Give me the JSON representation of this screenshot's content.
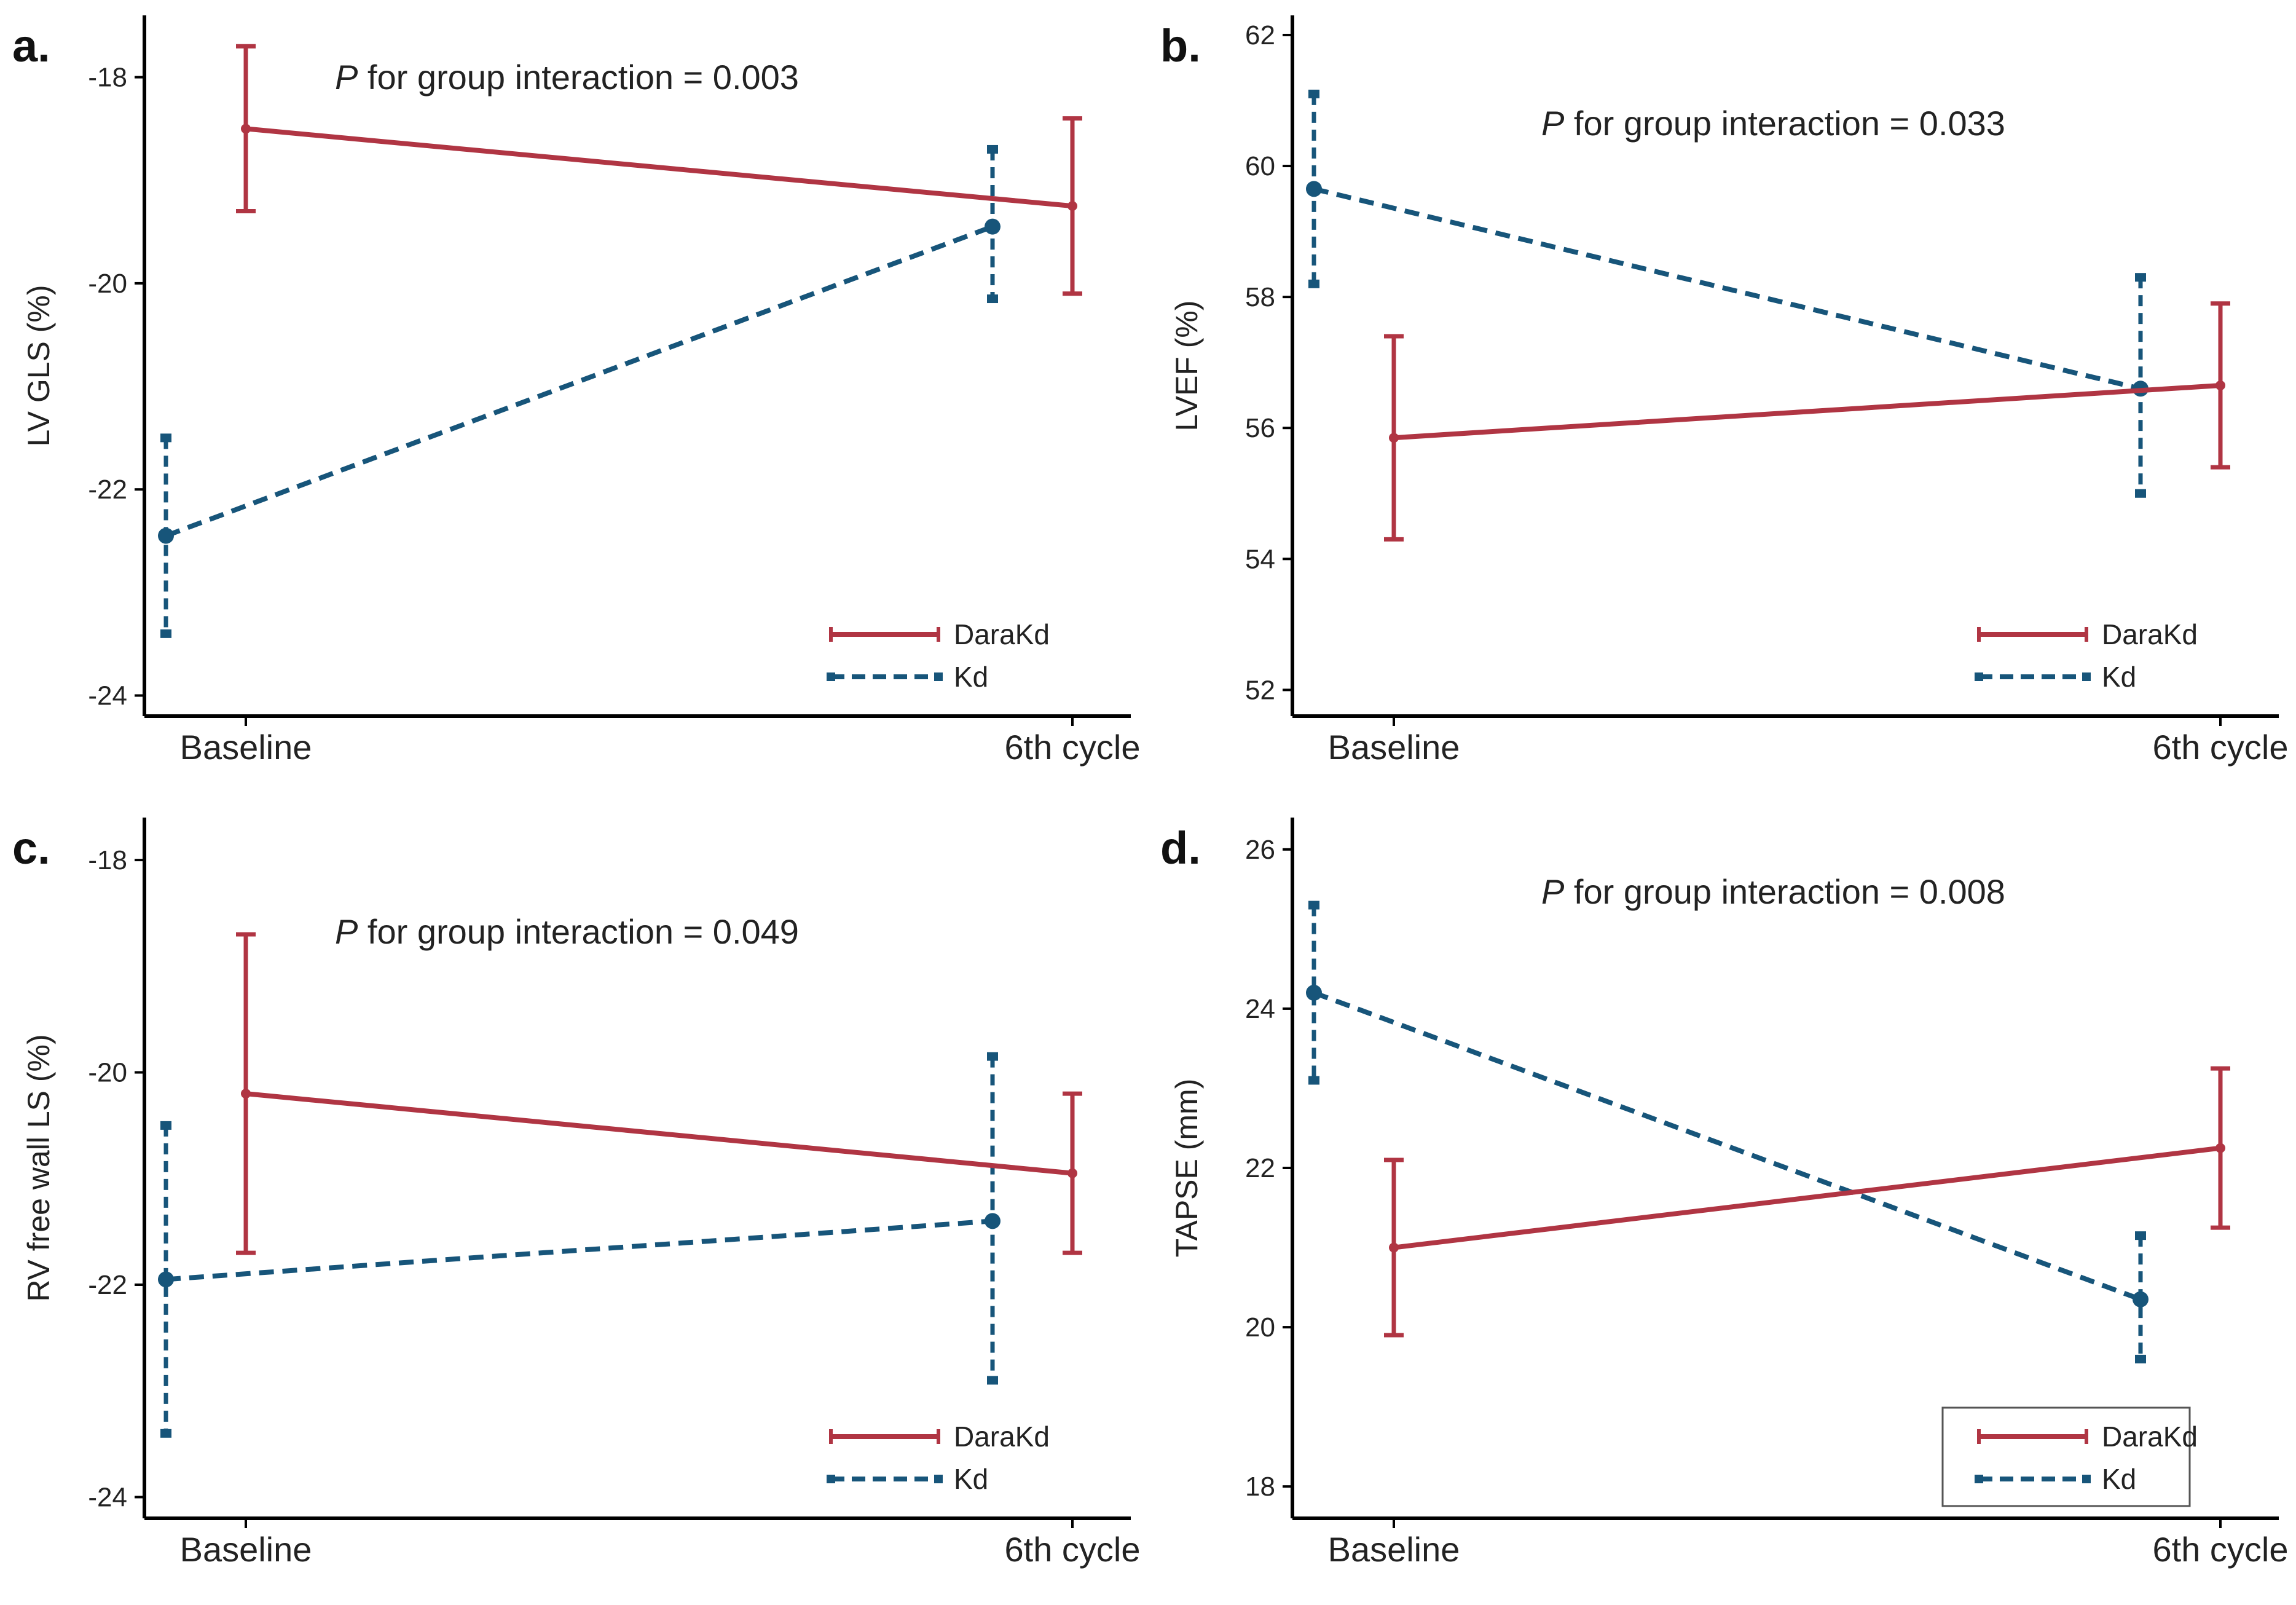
{
  "colors": {
    "DaraKd": "#b03543",
    "Kd": "#17557a"
  },
  "chart_data": [
    {
      "type": "line",
      "panel_label": "a.",
      "ylabel": "LV GLS (%)",
      "annotation_p": "P",
      "annotation_rest": " for group interaction = 0.003",
      "categories": [
        "Baseline",
        "6th cycle"
      ],
      "ylim": [
        -24.2,
        -17.4
      ],
      "yticks": [
        -18,
        -20,
        -22,
        -24
      ],
      "ytick_labels": [
        "-18",
        "-20",
        "-22",
        "-24"
      ],
      "legend_box": false,
      "series": [
        {
          "name": "DaraKd",
          "style": "solid",
          "values": [
            -18.5,
            -19.25
          ],
          "lower": [
            -19.3,
            -20.1
          ],
          "upper": [
            -17.7,
            -18.4
          ]
        },
        {
          "name": "Kd",
          "style": "dashed",
          "values": [
            -22.45,
            -19.45
          ],
          "lower": [
            -23.4,
            -20.15
          ],
          "upper": [
            -21.5,
            -18.7
          ]
        }
      ]
    },
    {
      "type": "line",
      "panel_label": "b.",
      "ylabel": "LVEF (%)",
      "annotation_p": "P",
      "annotation_rest": " for group interaction = 0.033",
      "categories": [
        "Baseline",
        "6th cycle"
      ],
      "ylim": [
        51.6,
        62.3
      ],
      "yticks": [
        52,
        54,
        56,
        58,
        60,
        62
      ],
      "ytick_labels": [
        "52",
        "54",
        "56",
        "58",
        "60",
        "62"
      ],
      "legend_box": false,
      "series": [
        {
          "name": "DaraKd",
          "style": "solid",
          "values": [
            55.85,
            56.65
          ],
          "lower": [
            54.3,
            55.4
          ],
          "upper": [
            57.4,
            57.9
          ]
        },
        {
          "name": "Kd",
          "style": "dashed",
          "values": [
            59.65,
            56.6
          ],
          "lower": [
            58.2,
            55.0
          ],
          "upper": [
            61.1,
            58.3
          ]
        }
      ]
    },
    {
      "type": "line",
      "panel_label": "c.",
      "ylabel": "RV free wall LS (%)",
      "annotation_p": "P",
      "annotation_rest": " for group interaction = 0.049",
      "categories": [
        "Baseline",
        "6th cycle"
      ],
      "ylim": [
        -24.2,
        -17.6
      ],
      "yticks": [
        -18,
        -20,
        -22,
        -24
      ],
      "ytick_labels": [
        "-18",
        "-20",
        "-22",
        "-24"
      ],
      "legend_box": false,
      "series": [
        {
          "name": "DaraKd",
          "style": "solid",
          "values": [
            -20.2,
            -20.95
          ],
          "lower": [
            -21.7,
            -21.7
          ],
          "upper": [
            -18.7,
            -20.2
          ]
        },
        {
          "name": "Kd",
          "style": "dashed",
          "values": [
            -21.95,
            -21.4
          ],
          "lower": [
            -23.4,
            -22.9
          ],
          "upper": [
            -20.5,
            -19.85
          ]
        }
      ]
    },
    {
      "type": "line",
      "panel_label": "d.",
      "ylabel": "TAPSE (mm)",
      "annotation_p": "P",
      "annotation_rest": " for group interaction = 0.008",
      "categories": [
        "Baseline",
        "6th cycle"
      ],
      "ylim": [
        17.6,
        26.4
      ],
      "yticks": [
        18,
        20,
        22,
        24,
        26
      ],
      "ytick_labels": [
        "18",
        "20",
        "22",
        "24",
        "26"
      ],
      "legend_box": true,
      "series": [
        {
          "name": "DaraKd",
          "style": "solid",
          "values": [
            21.0,
            22.25
          ],
          "lower": [
            19.9,
            21.25
          ],
          "upper": [
            22.1,
            23.25
          ]
        },
        {
          "name": "Kd",
          "style": "dashed",
          "values": [
            24.2,
            20.35
          ],
          "lower": [
            23.1,
            19.6
          ],
          "upper": [
            25.3,
            21.15
          ]
        }
      ]
    }
  ]
}
